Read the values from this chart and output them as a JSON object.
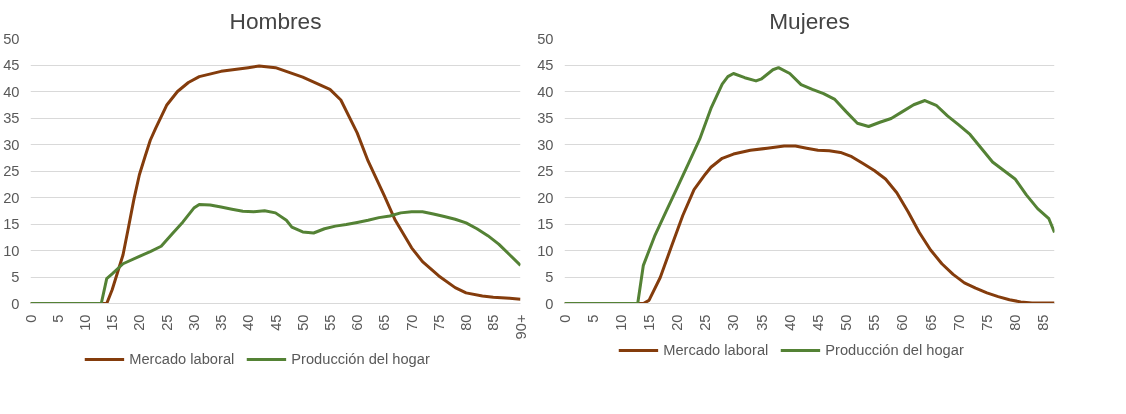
{
  "chart_data": [
    {
      "type": "line",
      "title": "Hombres",
      "xlim": [
        0,
        90
      ],
      "xticks": [
        0,
        5,
        10,
        15,
        20,
        25,
        30,
        35,
        40,
        45,
        50,
        55,
        60,
        65,
        70,
        75,
        80,
        85,
        {
          "value": 90,
          "label": "90+"
        }
      ],
      "ylim": [
        0,
        50
      ],
      "yticks": [
        0,
        5,
        10,
        15,
        20,
        25,
        30,
        35,
        40,
        45,
        50
      ],
      "grid": "y",
      "legend": "bottom",
      "marker": "none",
      "line_style": "solid",
      "series": [
        {
          "name": "Mercado laboral",
          "color": "#843c0c",
          "x": [
            0,
            14,
            15,
            17,
            18,
            19,
            20,
            21,
            22,
            23,
            25,
            27,
            29,
            31,
            35,
            40,
            42,
            45,
            50,
            55,
            57,
            60,
            62,
            65,
            67,
            70,
            72,
            75,
            78,
            80,
            83,
            85,
            88,
            90
          ],
          "values": [
            0,
            0,
            2.6,
            9.2,
            14.4,
            19.7,
            24.3,
            27.6,
            30.8,
            33.1,
            37.4,
            40,
            41.7,
            42.8,
            43.8,
            44.5,
            44.8,
            44.5,
            42.7,
            40.4,
            38.4,
            32.2,
            26.9,
            20.3,
            15.7,
            10.5,
            7.9,
            5.2,
            3,
            2,
            1.4,
            1.2,
            1,
            0.8
          ]
        },
        {
          "name": "Producción del hogar",
          "color": "#548235",
          "x": [
            0,
            13,
            14,
            15,
            17,
            20,
            22,
            24,
            26,
            28,
            30,
            31,
            33,
            35,
            37,
            39,
            41,
            43,
            45,
            47,
            48,
            50,
            52,
            54,
            56,
            58,
            60,
            62,
            64,
            66,
            68,
            70,
            72,
            74,
            76,
            78,
            80,
            82,
            84,
            86,
            88,
            90
          ],
          "values": [
            0,
            0,
            4.7,
            5.6,
            7.5,
            8.9,
            9.8,
            10.8,
            13.1,
            15.4,
            18,
            18.7,
            18.6,
            18.2,
            17.8,
            17.4,
            17.3,
            17.5,
            17.1,
            15.7,
            14.4,
            13.5,
            13.3,
            14.1,
            14.6,
            14.9,
            15.3,
            15.7,
            16.2,
            16.5,
            17.1,
            17.3,
            17.3,
            16.9,
            16.4,
            15.9,
            15.2,
            14.1,
            12.8,
            11.2,
            9.2,
            7.2
          ]
        }
      ]
    },
    {
      "type": "line",
      "title": "Mujeres",
      "xlim": [
        0,
        87
      ],
      "xticks": [
        0,
        5,
        10,
        15,
        20,
        25,
        30,
        35,
        40,
        45,
        50,
        55,
        60,
        65,
        70,
        75,
        80,
        85
      ],
      "ylim": [
        0,
        50
      ],
      "yticks": [
        0,
        5,
        10,
        15,
        20,
        25,
        30,
        35,
        40,
        45,
        50
      ],
      "grid": "y",
      "legend": "bottom",
      "marker": "none",
      "line_style": "solid",
      "series": [
        {
          "name": "Mercado laboral",
          "color": "#843c0c",
          "x": [
            0,
            14,
            15,
            17,
            19,
            21,
            23,
            25,
            26,
            28,
            30,
            33,
            36,
            39,
            41,
            43,
            45,
            47,
            49,
            51,
            53,
            55,
            57,
            59,
            61,
            63,
            65,
            67,
            69,
            71,
            73,
            75,
            77,
            79,
            81,
            83,
            85,
            87
          ],
          "values": [
            0,
            0,
            0.6,
            4.9,
            10.8,
            16.6,
            21.5,
            24.4,
            25.7,
            27.4,
            28.2,
            28.9,
            29.3,
            29.7,
            29.7,
            29.3,
            28.9,
            28.8,
            28.5,
            27.7,
            26.4,
            25.1,
            23.5,
            20.9,
            17.3,
            13.4,
            10.1,
            7.5,
            5.5,
            3.9,
            2.9,
            2,
            1.3,
            0.7,
            0.3,
            0.1,
            0.1,
            0.1
          ]
        },
        {
          "name": "Producción del hogar",
          "color": "#548235",
          "x": [
            0,
            13,
            14,
            16,
            18,
            20,
            22,
            24,
            26,
            28,
            29,
            30,
            32,
            34,
            35,
            37,
            38,
            40,
            42,
            44,
            46,
            48,
            50,
            52,
            54,
            56,
            58,
            60,
            62,
            64,
            66,
            68,
            70,
            72,
            74,
            76,
            78,
            80,
            82,
            84,
            86,
            87
          ],
          "values": [
            0,
            0,
            7.2,
            12.7,
            17.3,
            21.8,
            26.4,
            31,
            36.8,
            41.4,
            42.8,
            43.4,
            42.6,
            42,
            42.4,
            44.1,
            44.5,
            43.4,
            41.3,
            40.4,
            39.6,
            38.5,
            36.2,
            34,
            33.4,
            34.2,
            34.9,
            36.2,
            37.5,
            38.3,
            37.4,
            35.4,
            33.7,
            31.9,
            29.3,
            26.7,
            25.1,
            23.5,
            20.5,
            17.9,
            16,
            13.4
          ]
        }
      ]
    }
  ]
}
